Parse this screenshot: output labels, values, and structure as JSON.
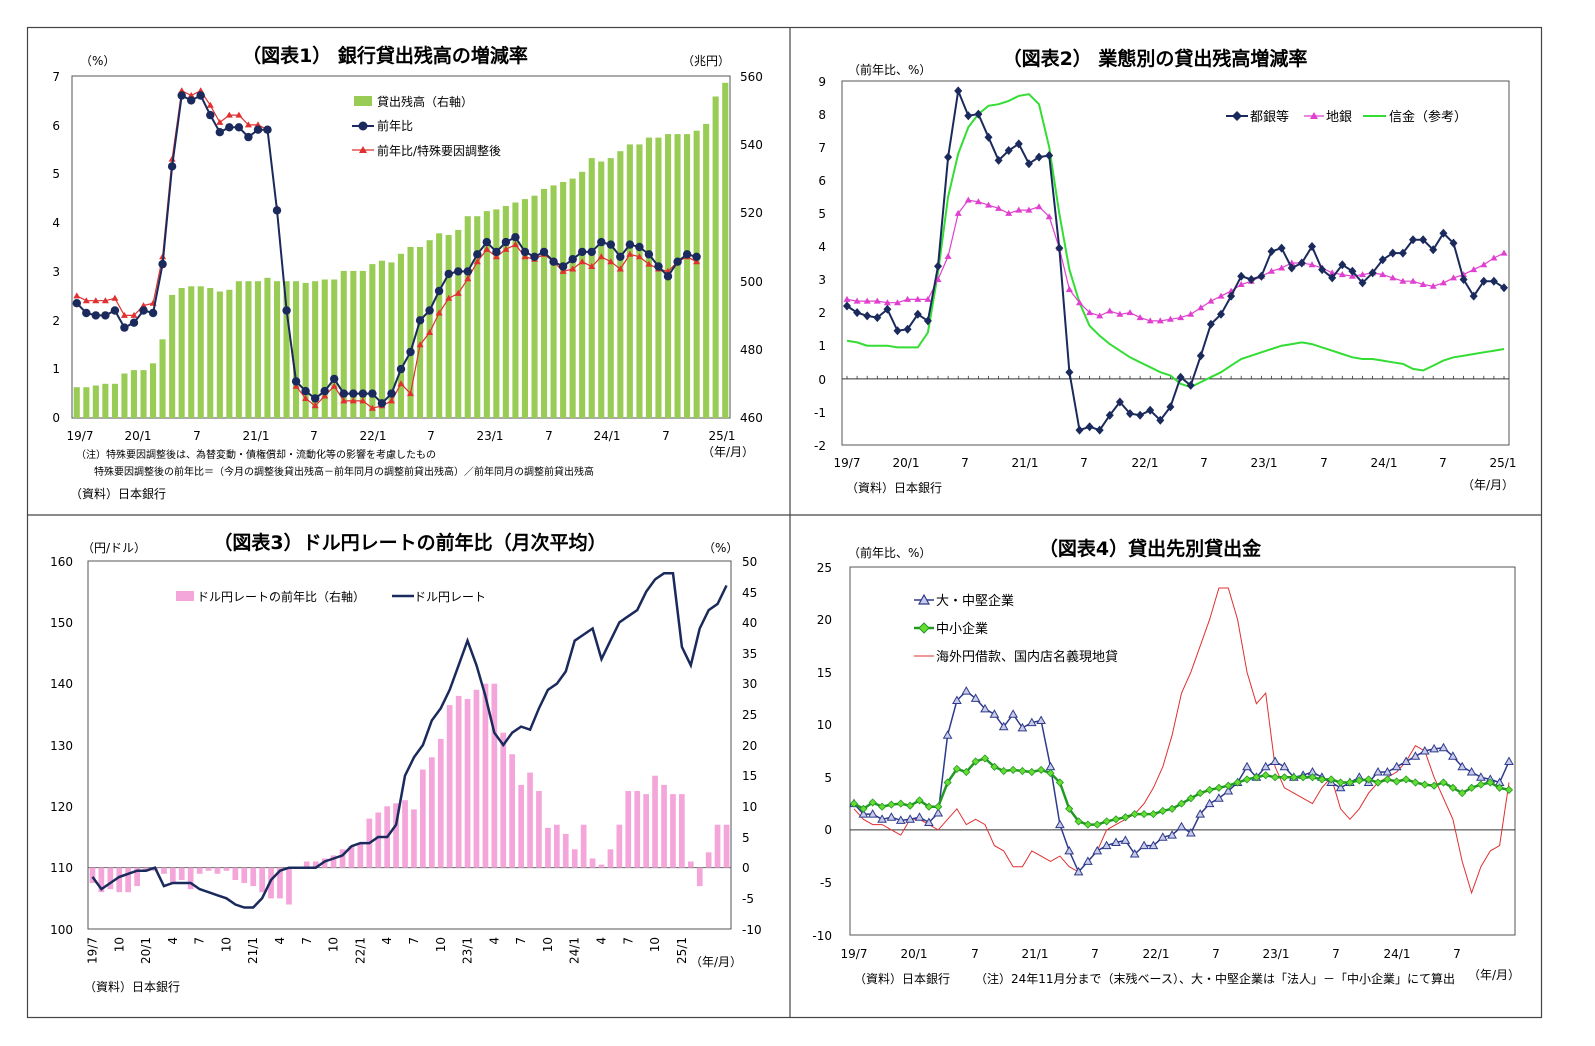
{
  "colors": {
    "bar_green": "#99CC55",
    "navy": "#1B2A5C",
    "red": "#E03030",
    "magenta": "#E040D0",
    "green": "#33DD33",
    "pink": "#F4A6DA",
    "lightred": "#E03030",
    "panel_border": "#444444"
  },
  "charts": [
    {
      "title": "（図表1） 銀行貸出残高の増減率",
      "left_unit": "（%）",
      "right_unit": "（兆円）",
      "left_ticks": [
        "7",
        "6",
        "5",
        "4",
        "3",
        "2",
        "1",
        "0"
      ],
      "right_ticks": [
        "560",
        "540",
        "520",
        "500",
        "480",
        "460"
      ],
      "x_ticks": [
        "19/7",
        "20/1",
        "7",
        "21/1",
        "7",
        "22/1",
        "7",
        "23/1",
        "7",
        "24/1",
        "7",
        "25/1"
      ],
      "x_unit": "（年/月）",
      "legend": [
        "貸出残高（右軸）",
        "前年比",
        "前年比/特殊要因調整後"
      ],
      "note1": "（注）特殊要因調整後は、為替変動・債権償却・流動化等の影響を考慮したもの",
      "note2": "特殊要因調整後の前年比＝（今月の調整後貸出残高－前年同月の調整前貸出残高）／前年同月の調整前貸出残高",
      "source": "（資料）日本銀行"
    },
    {
      "title": "（図表2） 業態別の貸出残高増減率",
      "left_unit": "（前年比、%）",
      "left_ticks": [
        "9",
        "8",
        "7",
        "6",
        "5",
        "4",
        "3",
        "2",
        "1",
        "0",
        "-1",
        "-2"
      ],
      "x_ticks": [
        "19/7",
        "20/1",
        "7",
        "21/1",
        "7",
        "22/1",
        "7",
        "23/1",
        "7",
        "24/1",
        "7",
        "25/1"
      ],
      "x_unit": "（年/月）",
      "legend": [
        "都銀等",
        "地銀",
        "信金（参考）"
      ],
      "source": "（資料）日本銀行"
    },
    {
      "title": "（図表3）ドル円レートの前年比（月次平均）",
      "left_unit": "（円/ドル）",
      "right_unit": "（%）",
      "left_ticks": [
        "160",
        "150",
        "140",
        "130",
        "120",
        "110",
        "100"
      ],
      "right_ticks": [
        "50",
        "45",
        "40",
        "35",
        "30",
        "25",
        "20",
        "15",
        "10",
        "5",
        "0",
        "-5",
        "-10"
      ],
      "x_ticks": [
        "19/7",
        "10",
        "20/1",
        "4",
        "7",
        "10",
        "21/1",
        "4",
        "7",
        "10",
        "22/1",
        "4",
        "7",
        "10",
        "23/1",
        "4",
        "7",
        "10",
        "24/1",
        "4",
        "7",
        "10",
        "25/1"
      ],
      "x_unit": "（年/月）",
      "legend": [
        "ドル円レートの前年比（右軸）",
        "ドル円レート"
      ],
      "source": "（資料）日本銀行"
    },
    {
      "title": "（図表4）貸出先別貸出金",
      "left_unit": "（前年比、%）",
      "left_ticks": [
        "25",
        "20",
        "15",
        "10",
        "5",
        "0",
        "-5",
        "-10"
      ],
      "x_ticks": [
        "19/7",
        "20/1",
        "7",
        "21/1",
        "7",
        "22/1",
        "7",
        "23/1",
        "7",
        "24/1",
        "7"
      ],
      "x_unit": "（年/月）",
      "legend": [
        "大・中堅企業",
        "中小企業",
        "海外円借款、国内店名義現地貸"
      ],
      "source": "（資料）日本銀行",
      "note": "（注）24年11月分まで（末残ベース）、大・中堅企業は「法人」－「中小企業」にて算出"
    }
  ],
  "chart_data": [
    {
      "type": "bar+line",
      "title": "（図表1） 銀行貸出残高の増減率",
      "x_start": "2019-07",
      "x_end": "2025-01",
      "ylim_left": [
        0,
        7
      ],
      "ylim_right": [
        460,
        560
      ],
      "series": [
        {
          "name": "貸出残高（右軸）",
          "axis": "right",
          "type": "bar",
          "values": [
            469,
            469,
            469.5,
            470,
            470,
            473,
            474,
            474,
            476,
            483,
            496,
            498,
            498.5,
            498.5,
            498,
            497,
            497.5,
            500,
            500,
            500,
            501,
            500,
            500,
            500,
            499.5,
            500,
            500.5,
            500.5,
            503,
            503,
            503,
            505,
            506,
            505.5,
            508,
            510,
            510,
            512,
            514,
            513.5,
            515,
            519,
            519,
            520.5,
            521,
            522,
            523,
            524,
            525,
            527,
            528,
            529,
            530,
            532,
            536,
            535,
            536,
            538,
            540,
            540,
            542,
            542,
            543,
            543,
            543,
            544,
            546,
            554,
            558
          ]
        },
        {
          "name": "前年比",
          "axis": "left",
          "type": "line",
          "values": [
            2.35,
            2.15,
            2.1,
            2.1,
            2.2,
            1.85,
            1.95,
            2.2,
            2.15,
            3.15,
            5.15,
            6.6,
            6.5,
            6.6,
            6.2,
            5.85,
            5.95,
            5.95,
            5.75,
            5.9,
            5.9,
            4.25,
            2.2,
            0.75,
            0.55,
            0.4,
            0.55,
            0.8,
            0.5,
            0.5,
            0.5,
            0.5,
            0.3,
            0.5,
            1.0,
            1.35,
            2.0,
            2.2,
            2.6,
            2.95,
            3.0,
            3.0,
            3.35,
            3.6,
            3.4,
            3.6,
            3.7,
            3.4,
            3.3,
            3.4,
            3.2,
            3.1,
            3.25,
            3.4,
            3.4,
            3.6,
            3.55,
            3.3,
            3.55,
            3.5,
            3.35,
            3.1,
            2.9,
            3.2,
            3.35,
            3.3
          ]
        },
        {
          "name": "前年比/特殊要因調整後",
          "axis": "left",
          "type": "line",
          "values": [
            2.5,
            2.4,
            2.4,
            2.4,
            2.45,
            2.1,
            2.1,
            2.3,
            2.35,
            3.3,
            5.3,
            6.7,
            6.6,
            6.7,
            6.4,
            6.05,
            6.2,
            6.2,
            6.0,
            6.0,
            5.9,
            4.3,
            2.2,
            0.65,
            0.4,
            0.25,
            0.45,
            0.65,
            0.35,
            0.35,
            0.35,
            0.2,
            0.25,
            0.35,
            0.7,
            0.5,
            1.5,
            1.75,
            2.15,
            2.45,
            2.55,
            2.85,
            3.2,
            3.45,
            3.3,
            3.45,
            3.55,
            3.3,
            3.25,
            3.35,
            3.2,
            3.0,
            3.05,
            3.2,
            3.1,
            3.3,
            3.2,
            3.05,
            3.35,
            3.3,
            3.15,
            3.05,
            3.0,
            3.2,
            3.3,
            3.2
          ]
        }
      ]
    },
    {
      "type": "line",
      "title": "（図表2） 業態別の貸出残高増減率",
      "x_start": "2019-07",
      "x_end": "2025-01",
      "ylim": [
        -2,
        9
      ],
      "series": [
        {
          "name": "都銀等",
          "values": [
            2.2,
            2.0,
            1.9,
            1.85,
            2.1,
            1.45,
            1.5,
            1.95,
            1.75,
            3.4,
            6.7,
            8.7,
            7.95,
            8.0,
            7.3,
            6.6,
            6.9,
            7.1,
            6.5,
            6.7,
            6.75,
            3.95,
            0.2,
            -1.55,
            -1.45,
            -1.55,
            -1.1,
            -0.7,
            -1.05,
            -1.1,
            -0.95,
            -1.25,
            -0.85,
            0.05,
            -0.2,
            0.7,
            1.65,
            1.95,
            2.5,
            3.1,
            3.0,
            3.1,
            3.85,
            3.95,
            3.35,
            3.5,
            4.0,
            3.3,
            3.05,
            3.45,
            3.25,
            2.9,
            3.2,
            3.6,
            3.8,
            3.8,
            4.2,
            4.2,
            3.9,
            4.4,
            4.1,
            3.0,
            2.5,
            2.95,
            2.95,
            2.75
          ]
        },
        {
          "name": "地銀",
          "values": [
            2.4,
            2.35,
            2.35,
            2.35,
            2.3,
            2.3,
            2.4,
            2.4,
            2.4,
            3.0,
            3.7,
            5.0,
            5.4,
            5.35,
            5.25,
            5.15,
            5.0,
            5.1,
            5.1,
            5.2,
            4.9,
            3.95,
            2.7,
            2.3,
            2.0,
            1.9,
            2.05,
            1.95,
            2.0,
            1.85,
            1.75,
            1.75,
            1.8,
            1.85,
            1.95,
            2.15,
            2.35,
            2.5,
            2.65,
            2.85,
            2.95,
            3.1,
            3.25,
            3.35,
            3.5,
            3.5,
            3.45,
            3.35,
            3.2,
            3.15,
            3.1,
            3.15,
            3.2,
            3.15,
            3.05,
            2.95,
            2.95,
            2.85,
            2.8,
            2.9,
            3.05,
            3.15,
            3.3,
            3.45,
            3.65,
            3.8
          ]
        },
        {
          "name": "信金（参考）",
          "values": [
            1.15,
            1.1,
            1.0,
            1.0,
            1.0,
            0.95,
            0.95,
            0.95,
            1.4,
            3.2,
            5.5,
            6.8,
            7.6,
            8.0,
            8.25,
            8.3,
            8.4,
            8.55,
            8.6,
            8.3,
            7.0,
            5.0,
            3.3,
            2.3,
            1.6,
            1.3,
            1.05,
            0.85,
            0.65,
            0.5,
            0.35,
            0.2,
            0.1,
            -0.15,
            -0.25,
            -0.1,
            0.05,
            0.2,
            0.4,
            0.6,
            0.7,
            0.8,
            0.9,
            1.0,
            1.05,
            1.1,
            1.05,
            0.95,
            0.85,
            0.75,
            0.65,
            0.6,
            0.6,
            0.55,
            0.5,
            0.45,
            0.3,
            0.25,
            0.4,
            0.55,
            0.65,
            0.7,
            0.75,
            0.8,
            0.85,
            0.9
          ]
        }
      ]
    },
    {
      "type": "bar+line",
      "title": "（図表3）ドル円レートの前年比（月次平均）",
      "x_start": "2019-07",
      "x_end": "2025-01",
      "ylim_left": [
        100,
        160
      ],
      "ylim_right": [
        -10,
        50
      ],
      "series": [
        {
          "name": "ドル円レートの前年比（右軸）",
          "axis": "right",
          "type": "bar",
          "values": [
            -2.5,
            -4,
            -3.5,
            -4,
            -4,
            -3,
            -0.5,
            -0.5,
            -1,
            -2.5,
            -2,
            -3.5,
            -1,
            -0.5,
            -1,
            -0.5,
            -2,
            -2.5,
            -3,
            -4,
            -5,
            -5,
            -6,
            0,
            1,
            1,
            1.5,
            2,
            3,
            3.5,
            4,
            8,
            9,
            10,
            10.5,
            11,
            9.5,
            16,
            18,
            21,
            26.5,
            28,
            27.5,
            29,
            30,
            30,
            22,
            18.5,
            13.5,
            15.5,
            12.5,
            6.5,
            7,
            5.5,
            3,
            7,
            1.5,
            0.5,
            3,
            7,
            12.5,
            12.5,
            12,
            15,
            13.5,
            12,
            12,
            1,
            -3,
            2.5,
            7,
            7
          ]
        },
        {
          "name": "ドル円レート",
          "axis": "left",
          "type": "line",
          "values": [
            108.5,
            106.5,
            107.5,
            108.5,
            109,
            109.5,
            109.5,
            110,
            107,
            107.5,
            107.5,
            107.5,
            106.5,
            106,
            105.5,
            105,
            104,
            103.5,
            103.5,
            105,
            108,
            109.5,
            110,
            110,
            110,
            110,
            111,
            111.5,
            112,
            113.5,
            114,
            114,
            115,
            115,
            117,
            125,
            128,
            130,
            134,
            136,
            139,
            143,
            147,
            143,
            138,
            132,
            130,
            132,
            133,
            132.5,
            136,
            139,
            140,
            142,
            147,
            148,
            149,
            144,
            147,
            150,
            151,
            152,
            155,
            157,
            158,
            158,
            146,
            143,
            149,
            152,
            153,
            156
          ]
        }
      ]
    },
    {
      "type": "line",
      "title": "（図表4）貸出先別貸出金",
      "x_start": "2019-07",
      "x_end": "2024-11",
      "ylim": [
        -10,
        25
      ],
      "series": [
        {
          "name": "大・中堅企業",
          "values": [
            2.5,
            1.5,
            1.5,
            1.0,
            1.2,
            0.9,
            1.0,
            1.2,
            0.7,
            1.6,
            9.0,
            12.3,
            13.2,
            12.5,
            11.5,
            11.0,
            9.8,
            11.0,
            9.7,
            10.2,
            10.4,
            6.0,
            0.5,
            -2.0,
            -4.0,
            -3.0,
            -2.0,
            -1.5,
            -1.2,
            -1.0,
            -2.3,
            -1.5,
            -1.5,
            -0.7,
            -0.5,
            0.3,
            -0.3,
            1.5,
            2.5,
            3.0,
            3.7,
            4.5,
            6.0,
            5.0,
            6.0,
            6.5,
            6.0,
            5.0,
            5.2,
            5.5,
            5.0,
            4.5,
            4.0,
            4.5,
            5.0,
            4.5,
            5.5,
            5.5,
            6.0,
            6.5,
            7.0,
            7.5,
            7.7,
            7.8,
            7.0,
            6.0,
            5.5,
            5.0,
            4.8,
            4.5,
            6.5
          ]
        },
        {
          "name": "中小企業",
          "values": [
            2.5,
            2.0,
            2.6,
            2.2,
            2.4,
            2.5,
            2.3,
            2.8,
            2.2,
            2.2,
            4.5,
            5.8,
            5.5,
            6.5,
            6.8,
            6.0,
            5.6,
            5.7,
            5.6,
            5.5,
            5.7,
            5.4,
            4.5,
            2.0,
            0.8,
            0.5,
            0.5,
            0.8,
            1.0,
            1.2,
            1.5,
            1.5,
            1.5,
            1.8,
            2.0,
            2.5,
            3.0,
            3.5,
            3.8,
            4.0,
            4.2,
            4.5,
            4.8,
            5.0,
            5.2,
            5.0,
            5.0,
            5.0,
            5.0,
            5.0,
            4.8,
            4.8,
            4.5,
            4.5,
            4.7,
            4.8,
            4.5,
            4.8,
            4.6,
            4.8,
            4.5,
            4.3,
            4.2,
            4.5,
            4.0,
            3.5,
            4.0,
            4.3,
            4.5,
            4.0,
            3.8
          ]
        },
        {
          "name": "海外円借款、国内店名義現地貸",
          "values": [
            2.0,
            1.0,
            0.5,
            0.5,
            0.0,
            -0.5,
            1.0,
            1.0,
            0.5,
            0.0,
            1.0,
            2.0,
            0.5,
            1.0,
            0.5,
            -1.5,
            -2.0,
            -3.5,
            -3.5,
            -2.0,
            -2.5,
            -3.0,
            -2.5,
            -3.5,
            -4.0,
            -3.0,
            -2.0,
            0.0,
            0.5,
            1.0,
            1.5,
            2.5,
            4.0,
            6.0,
            9.0,
            13.0,
            15.0,
            17.5,
            20.0,
            23.0,
            23.0,
            20.0,
            15.0,
            12.0,
            13.0,
            6.0,
            4.0,
            3.5,
            3.0,
            2.5,
            4.0,
            5.0,
            2.0,
            1.0,
            2.0,
            3.5,
            4.5,
            5.0,
            5.5,
            6.5,
            8.0,
            7.5,
            5.0,
            3.0,
            1.0,
            -3.0,
            -6.0,
            -3.5,
            -2.0,
            -1.5,
            4.5
          ]
        }
      ]
    }
  ]
}
